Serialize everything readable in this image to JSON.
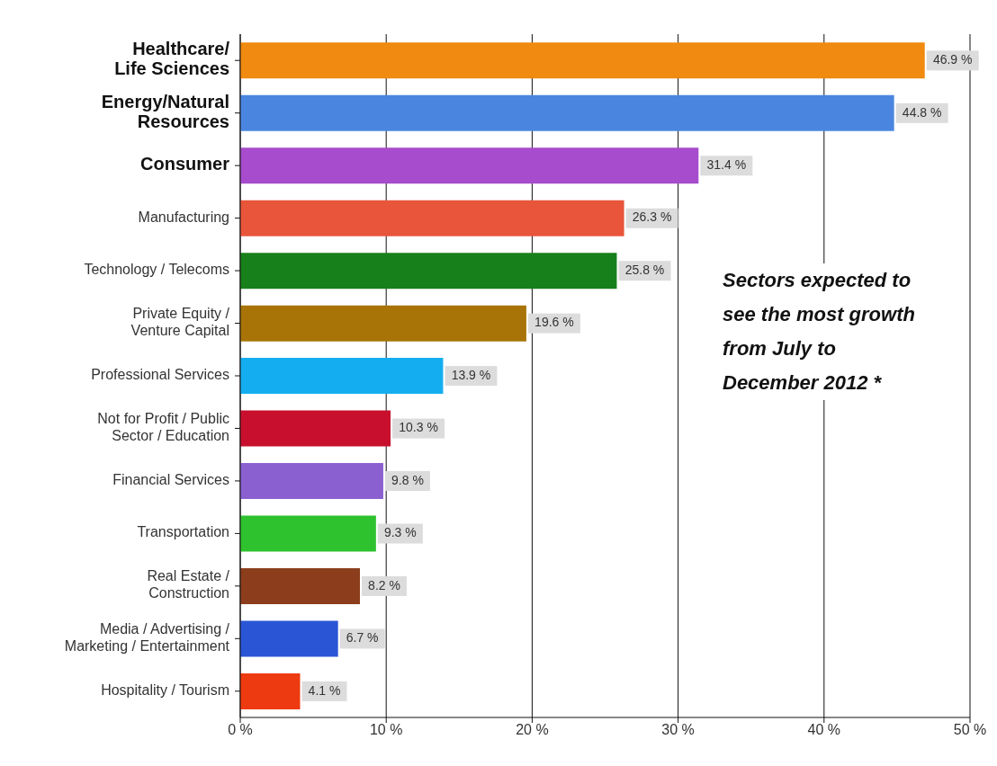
{
  "chart_data": {
    "type": "bar",
    "orientation": "horizontal",
    "categories": [
      "Healthcare/\nLife Sciences",
      "Energy/Natural\nResources",
      "Consumer",
      "Manufacturing",
      "Technology / Telecoms",
      "Private Equity /\nVenture Capital",
      "Professional Services",
      "Not for Profit / Public\nSector / Education",
      "Financial Services",
      "Transportation",
      "Real Estate /\nConstruction",
      "Media / Advertising /\nMarketing / Entertainment",
      "Hospitality / Tourism"
    ],
    "values": [
      46.9,
      44.8,
      31.4,
      26.3,
      25.8,
      19.6,
      13.9,
      10.3,
      9.8,
      9.3,
      8.2,
      6.7,
      4.1
    ],
    "value_labels": [
      "46.9 %",
      "44.8 %",
      "31.4 %",
      "26.3 %",
      "25.8 %",
      "19.6 %",
      "13.9 %",
      "10.3 %",
      "9.8 %",
      "9.3 %",
      "8.2 %",
      "6.7 %",
      "4.1 %"
    ],
    "colors": [
      "#f08a10",
      "#4a86e0",
      "#a64ccc",
      "#e8553a",
      "#17801a",
      "#a87408",
      "#14aef0",
      "#c8102e",
      "#8a60d0",
      "#2ec22e",
      "#8c3e1c",
      "#2a56d6",
      "#ee3a10"
    ],
    "xlim": [
      0,
      50
    ],
    "xticks": [
      {
        "value": 0,
        "label": "0 %"
      },
      {
        "value": 10,
        "label": "10 %"
      },
      {
        "value": 20,
        "label": "20 %"
      },
      {
        "value": 30,
        "label": "30 %"
      },
      {
        "value": 40,
        "label": "40 %"
      },
      {
        "value": 50,
        "label": "50 %"
      }
    ],
    "grid": "x",
    "annotations": [
      "Sectors expected to see the most growth from July to December 2012 *"
    ]
  }
}
